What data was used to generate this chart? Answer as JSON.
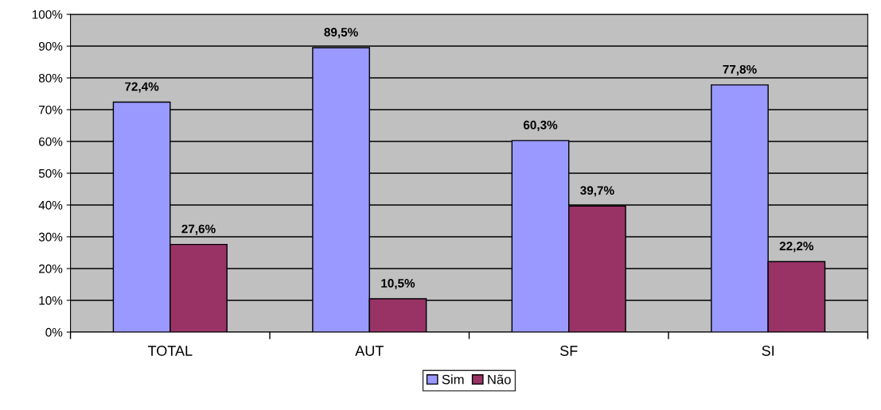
{
  "chart_data": {
    "type": "bar",
    "categories": [
      "TOTAL",
      "AUT",
      "SF",
      "SI"
    ],
    "series": [
      {
        "name": "Sim",
        "color": "#9999ff",
        "values": [
          72.4,
          89.5,
          60.3,
          77.8
        ],
        "value_labels": [
          "72,4%",
          "89,5%",
          "60,3%",
          "77,8%"
        ]
      },
      {
        "name": "Não",
        "color": "#993366",
        "values": [
          27.6,
          10.5,
          39.7,
          22.2
        ],
        "value_labels": [
          "27,6%",
          "10,5%",
          "39,7%",
          "22,2%"
        ]
      }
    ],
    "ylim": [
      0,
      100
    ],
    "yticks": [
      {
        "value": 0,
        "label": "0%"
      },
      {
        "value": 10,
        "label": "10%"
      },
      {
        "value": 20,
        "label": "20%"
      },
      {
        "value": 30,
        "label": "30%"
      },
      {
        "value": 40,
        "label": "40%"
      },
      {
        "value": 50,
        "label": "50%"
      },
      {
        "value": 60,
        "label": "60%"
      },
      {
        "value": 70,
        "label": "70%"
      },
      {
        "value": 80,
        "label": "80%"
      },
      {
        "value": 90,
        "label": "90%"
      },
      {
        "value": 100,
        "label": "100%"
      }
    ],
    "grid": "y",
    "legend": "bottom"
  }
}
